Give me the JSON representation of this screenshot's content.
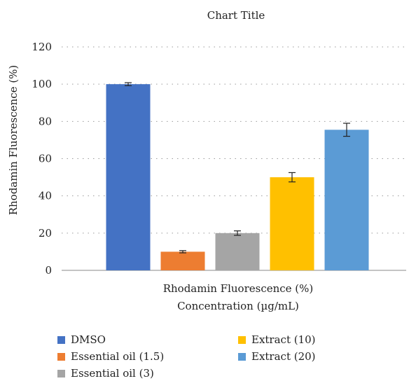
{
  "chart_data": {
    "type": "bar",
    "title": "Chart Title",
    "xlabel": "Rhodamin Fluorescence (%)",
    "xlabel2": "Concentration (µg/mL)",
    "ylabel": "Rhodamin Fluorescence (%)",
    "ylim": [
      0,
      120
    ],
    "yticks": [
      0,
      20,
      40,
      60,
      80,
      100,
      120
    ],
    "grid": "dotted horizontal",
    "legend_position": "bottom",
    "series": [
      {
        "name": "DMSO",
        "value": 100,
        "error": 0.8,
        "color": "#4472C4"
      },
      {
        "name": "Essential oil (1.5)",
        "value": 10,
        "error": 0.6,
        "color": "#ED7D31"
      },
      {
        "name": "Essential oil (3)",
        "value": 20,
        "error": 1.2,
        "color": "#A5A5A5"
      },
      {
        "name": "Extract (10)",
        "value": 50,
        "error": 2.5,
        "color": "#FFC000"
      },
      {
        "name": "Extract (20)",
        "value": 75.5,
        "error": 3.5,
        "color": "#5B9BD5"
      }
    ]
  }
}
